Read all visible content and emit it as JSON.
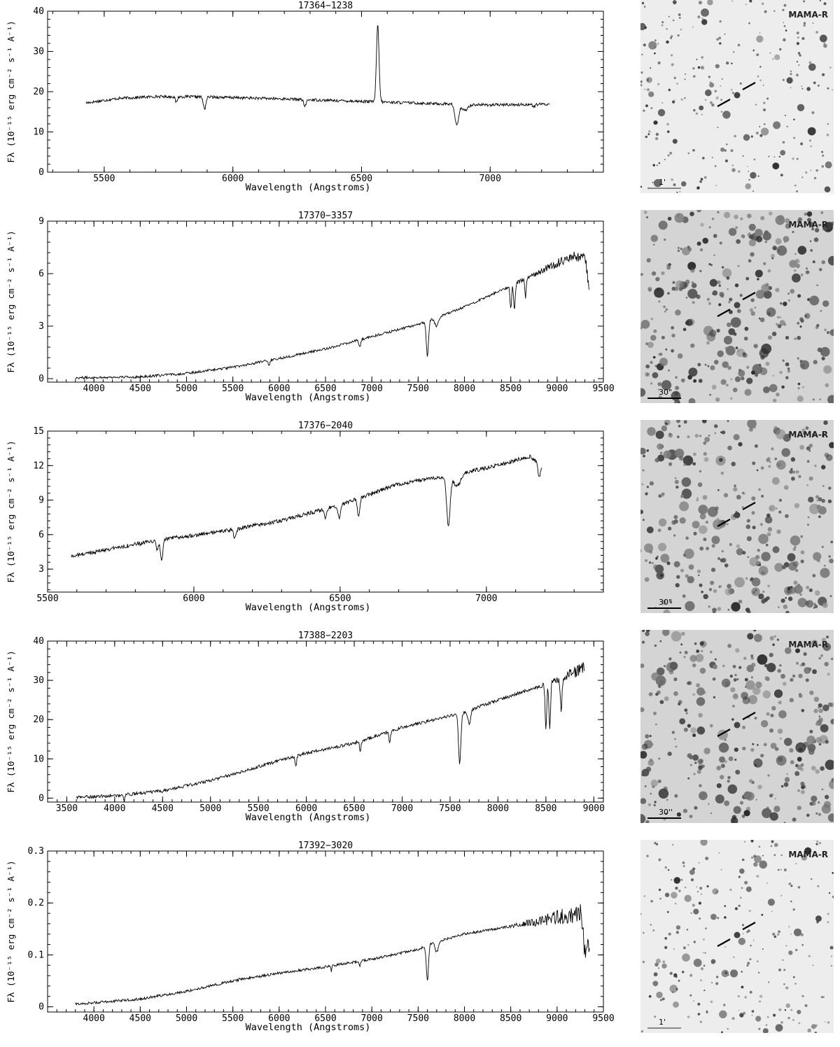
{
  "chart_data": [
    {
      "type": "line",
      "title": "17364−1238",
      "xlabel": "Wavelength (Angstroms)",
      "ylabel": "Fλ (10⁻¹⁵ erg cm⁻² s⁻¹ A⁻¹)",
      "xlim": [
        5280,
        7440
      ],
      "ylim": [
        0,
        40
      ],
      "xticks": [
        5500,
        6000,
        6500,
        7000
      ],
      "yticks": [
        0,
        10,
        20,
        30,
        40
      ],
      "x_range": [
        5430,
        7230
      ],
      "base": [
        [
          5430,
          17.2
        ],
        [
          5550,
          18.3
        ],
        [
          5700,
          18.8
        ],
        [
          5900,
          18.7
        ],
        [
          6200,
          18.2
        ],
        [
          6500,
          17.6
        ],
        [
          6800,
          17.0
        ],
        [
          7000,
          16.7
        ],
        [
          7230,
          16.9
        ]
      ],
      "noise": 0.35,
      "features": [
        [
          5780,
          -1.4,
          4
        ],
        [
          5890,
          -3.0,
          5
        ],
        [
          6280,
          -1.6,
          5
        ],
        [
          6563,
          19.0,
          5
        ],
        [
          6870,
          -5.2,
          7
        ],
        [
          6900,
          -1.5,
          12
        ],
        [
          7170,
          -0.6,
          5
        ]
      ],
      "image": {
        "survey_label": "MAMA-R",
        "scale_label": "1'",
        "scale_bar_color": "#888888"
      }
    },
    {
      "type": "line",
      "title": "17370−3357",
      "xlabel": "Wavelength (Angstroms)",
      "ylabel": "Fλ (10⁻¹⁵ erg cm⁻² s⁻¹ A⁻¹)",
      "xlim": [
        3500,
        9500
      ],
      "ylim": [
        -0.2,
        9.0
      ],
      "xticks": [
        4000,
        4500,
        5000,
        5500,
        6000,
        6500,
        7000,
        7500,
        8000,
        8500,
        9000,
        9500
      ],
      "yticks": [
        0,
        3,
        6,
        9
      ],
      "x_range": [
        3800,
        9350
      ],
      "base": [
        [
          3800,
          0.05
        ],
        [
          4500,
          0.1
        ],
        [
          5000,
          0.3
        ],
        [
          5500,
          0.65
        ],
        [
          6000,
          1.15
        ],
        [
          6500,
          1.7
        ],
        [
          7000,
          2.4
        ],
        [
          7500,
          3.1
        ],
        [
          7700,
          3.5
        ],
        [
          8000,
          4.1
        ],
        [
          8500,
          5.3
        ],
        [
          9000,
          6.6
        ],
        [
          9200,
          7.0
        ],
        [
          9300,
          6.9
        ],
        [
          9350,
          5.2
        ]
      ],
      "noise": 0.07,
      "noise_ramp": [
        8400,
        9350,
        0.35
      ],
      "features": [
        [
          5890,
          -0.3,
          8
        ],
        [
          6870,
          -0.4,
          10
        ],
        [
          7600,
          -2.0,
          12
        ],
        [
          7700,
          -0.5,
          20
        ],
        [
          8500,
          -1.3,
          8
        ],
        [
          8540,
          -1.4,
          8
        ],
        [
          8660,
          -1.0,
          8
        ]
      ],
      "image": {
        "survey_label": "MAMA-R",
        "scale_label": "30\"",
        "scale_bar_color": "#000000"
      }
    },
    {
      "type": "line",
      "title": "17376−2040",
      "xlabel": "Wavelength (Angstroms)",
      "ylabel": "Fλ (10⁻¹⁵ erg cm⁻² s⁻¹ A⁻¹)",
      "xlim": [
        5500,
        7400
      ],
      "ylim": [
        1.0,
        15.0
      ],
      "xticks": [
        5500,
        6000,
        6500,
        7000
      ],
      "yticks": [
        3,
        6,
        9,
        12,
        15
      ],
      "x_range": [
        5580,
        7190
      ],
      "base": [
        [
          5580,
          4.1
        ],
        [
          5700,
          4.7
        ],
        [
          5900,
          5.6
        ],
        [
          6100,
          6.3
        ],
        [
          6300,
          7.2
        ],
        [
          6500,
          8.6
        ],
        [
          6700,
          10.4
        ],
        [
          6870,
          11.1
        ],
        [
          7000,
          11.8
        ],
        [
          7150,
          12.8
        ],
        [
          7190,
          11.9
        ]
      ],
      "noise": 0.17,
      "features": [
        [
          5890,
          -1.8,
          4
        ],
        [
          5875,
          -0.8,
          4
        ],
        [
          6140,
          -0.7,
          5
        ],
        [
          6450,
          -0.9,
          4
        ],
        [
          6497,
          -1.2,
          4
        ],
        [
          6563,
          -1.6,
          4
        ],
        [
          6870,
          -4.2,
          6
        ],
        [
          6900,
          -1.0,
          12
        ],
        [
          7180,
          -1.2,
          4
        ]
      ],
      "image": {
        "survey_label": "MAMA-R",
        "scale_label": "30\"",
        "scale_bar_color": "#000000"
      }
    },
    {
      "type": "line",
      "title": "17388−2203",
      "xlabel": "Wavelength (Angstroms)",
      "ylabel": "Fλ (10⁻¹⁵ erg cm⁻² s⁻¹ A⁻¹)",
      "xlim": [
        3300,
        9100
      ],
      "ylim": [
        -1.0,
        40.0
      ],
      "xticks": [
        3500,
        4000,
        4500,
        5000,
        5500,
        6000,
        6500,
        7000,
        7500,
        8000,
        8500,
        9000
      ],
      "yticks": [
        0,
        10,
        20,
        30,
        40
      ],
      "x_range": [
        3600,
        8900
      ],
      "base": [
        [
          3600,
          0.2
        ],
        [
          4000,
          0.6
        ],
        [
          4500,
          1.8
        ],
        [
          5000,
          4.5
        ],
        [
          5500,
          8.0
        ],
        [
          6000,
          11.5
        ],
        [
          6500,
          14.0
        ],
        [
          7000,
          18.0
        ],
        [
          7500,
          21.0
        ],
        [
          7600,
          21.5
        ],
        [
          8000,
          25.0
        ],
        [
          8500,
          29.0
        ],
        [
          8900,
          33.0
        ]
      ],
      "noise": 0.4,
      "noise_ramp": [
        8400,
        8900,
        1.8
      ],
      "features": [
        [
          4100,
          -1.5,
          6
        ],
        [
          5890,
          -2.5,
          8
        ],
        [
          6563,
          -2.5,
          8
        ],
        [
          6870,
          -2.8,
          8
        ],
        [
          7600,
          -13.0,
          12
        ],
        [
          7700,
          -3.5,
          14
        ],
        [
          8500,
          -12.0,
          8
        ],
        [
          8540,
          -12.0,
          8
        ],
        [
          8660,
          -9.5,
          8
        ]
      ],
      "image": {
        "survey_label": "MAMA-R",
        "scale_label": "30''",
        "scale_bar_color": "#000000"
      }
    },
    {
      "type": "line",
      "title": "17392−3020",
      "xlabel": "Wavelength (Angstroms)",
      "ylabel": "Fλ (10⁻¹⁵ erg cm⁻² s⁻¹ A⁻¹)",
      "xlim": [
        3500,
        9500
      ],
      "ylim": [
        -0.01,
        0.3
      ],
      "xticks": [
        4000,
        4500,
        5000,
        5500,
        6000,
        6500,
        7000,
        7500,
        8000,
        8500,
        9000,
        9500
      ],
      "yticks": [
        0,
        0.1,
        0.2,
        0.3
      ],
      "x_range": [
        3800,
        9350
      ],
      "base": [
        [
          3800,
          0.005
        ],
        [
          4500,
          0.015
        ],
        [
          5000,
          0.03
        ],
        [
          5500,
          0.05
        ],
        [
          6000,
          0.065
        ],
        [
          6500,
          0.077
        ],
        [
          7000,
          0.092
        ],
        [
          7500,
          0.11
        ],
        [
          7600,
          0.12
        ],
        [
          8000,
          0.14
        ],
        [
          8500,
          0.155
        ],
        [
          9000,
          0.172
        ],
        [
          9250,
          0.18
        ],
        [
          9300,
          0.11
        ],
        [
          9350,
          0.12
        ]
      ],
      "noise": 0.0025,
      "noise_ramp": [
        8500,
        9250,
        0.02
      ],
      "features": [
        [
          5577,
          0.012,
          4
        ],
        [
          5577,
          -0.012,
          3
        ],
        [
          6563,
          -0.01,
          6
        ],
        [
          6870,
          -0.01,
          8
        ],
        [
          7600,
          -0.07,
          12
        ],
        [
          7700,
          -0.02,
          16
        ]
      ],
      "image": {
        "survey_label": "MAMA-R",
        "scale_label": "1'",
        "scale_bar_color": "#888888"
      }
    }
  ]
}
